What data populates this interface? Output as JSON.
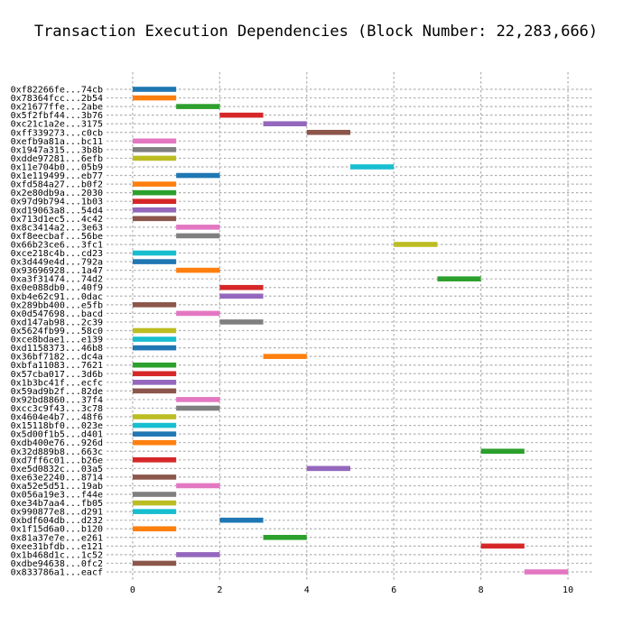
{
  "chart_data": {
    "type": "bar",
    "orientation": "horizontal-gantt",
    "title": "Transaction Execution Dependencies (Block Number: 22,283,666)",
    "xlabel": "",
    "ylabel": "",
    "xlim": [
      -0.6,
      10.6
    ],
    "xticks": [
      0,
      2,
      4,
      6,
      8,
      10
    ],
    "grid": true,
    "legend": "none",
    "palette": [
      "#1f77b4",
      "#ff7f0e",
      "#2ca02c",
      "#d62728",
      "#9467bd",
      "#8c564b",
      "#e377c2",
      "#7f7f7f",
      "#bcbd22",
      "#17becf"
    ],
    "tasks": [
      {
        "label": "0xf82266fe...74cb",
        "start": 0,
        "end": 1
      },
      {
        "label": "0x78364fcc...2b54",
        "start": 0,
        "end": 1
      },
      {
        "label": "0x21677ffe...2abe",
        "start": 1,
        "end": 2
      },
      {
        "label": "0x5f2fbf44...3b76",
        "start": 2,
        "end": 3
      },
      {
        "label": "0xc21c1a2e...3175",
        "start": 3,
        "end": 4
      },
      {
        "label": "0xff339273...c0cb",
        "start": 4,
        "end": 5
      },
      {
        "label": "0xefb9a81a...bc11",
        "start": 0,
        "end": 1
      },
      {
        "label": "0x1947a315...3b8b",
        "start": 0,
        "end": 1
      },
      {
        "label": "0xdde97281...6efb",
        "start": 0,
        "end": 1
      },
      {
        "label": "0x11e704b0...05b9",
        "start": 5,
        "end": 6
      },
      {
        "label": "0x1e119499...eb77",
        "start": 1,
        "end": 2
      },
      {
        "label": "0xfd584a27...b0f2",
        "start": 0,
        "end": 1
      },
      {
        "label": "0x2e80db9a...2030",
        "start": 0,
        "end": 1
      },
      {
        "label": "0x97d9b794...1b03",
        "start": 0,
        "end": 1
      },
      {
        "label": "0xd19063a8...54d4",
        "start": 0,
        "end": 1
      },
      {
        "label": "0x713d1ec5...4c42",
        "start": 0,
        "end": 1
      },
      {
        "label": "0x8c3414a2...3e63",
        "start": 1,
        "end": 2
      },
      {
        "label": "0xf8eecbaf...56be",
        "start": 1,
        "end": 2
      },
      {
        "label": "0x66b23ce6...3fc1",
        "start": 6,
        "end": 7
      },
      {
        "label": "0xce218c4b...cd23",
        "start": 0,
        "end": 1
      },
      {
        "label": "0x3d449e4d...792a",
        "start": 0,
        "end": 1
      },
      {
        "label": "0x93696928...1a47",
        "start": 1,
        "end": 2
      },
      {
        "label": "0xa3f31474...74d2",
        "start": 7,
        "end": 8
      },
      {
        "label": "0x0e088db0...40f9",
        "start": 2,
        "end": 3
      },
      {
        "label": "0xb4e62c91...0dac",
        "start": 2,
        "end": 3
      },
      {
        "label": "0x289bb400...e5fb",
        "start": 0,
        "end": 1
      },
      {
        "label": "0x0d547698...bacd",
        "start": 1,
        "end": 2
      },
      {
        "label": "0xd147ab98...2c39",
        "start": 2,
        "end": 3
      },
      {
        "label": "0x5624fb99...58c0",
        "start": 0,
        "end": 1
      },
      {
        "label": "0xce8bdae1...e139",
        "start": 0,
        "end": 1
      },
      {
        "label": "0xd1158373...46b8",
        "start": 0,
        "end": 1
      },
      {
        "label": "0x36bf7182...dc4a",
        "start": 3,
        "end": 4
      },
      {
        "label": "0xbfa11083...7621",
        "start": 0,
        "end": 1
      },
      {
        "label": "0x57cba017...3d6b",
        "start": 0,
        "end": 1
      },
      {
        "label": "0x1b3bc41f...ecfc",
        "start": 0,
        "end": 1
      },
      {
        "label": "0x59ad9b2f...82de",
        "start": 0,
        "end": 1
      },
      {
        "label": "0x92bd8860...37f4",
        "start": 1,
        "end": 2
      },
      {
        "label": "0xcc3c9f43...3c78",
        "start": 1,
        "end": 2
      },
      {
        "label": "0x4604e4b7...48f6",
        "start": 0,
        "end": 1
      },
      {
        "label": "0x15118bf0...023e",
        "start": 0,
        "end": 1
      },
      {
        "label": "0x5d00f1b5...d401",
        "start": 0,
        "end": 1
      },
      {
        "label": "0xdb400e76...926d",
        "start": 0,
        "end": 1
      },
      {
        "label": "0x32d889b8...663c",
        "start": 8,
        "end": 9
      },
      {
        "label": "0xd7ff6c01...b26e",
        "start": 0,
        "end": 1
      },
      {
        "label": "0xe5d0832c...03a5",
        "start": 4,
        "end": 5
      },
      {
        "label": "0xe63e2240...8714",
        "start": 0,
        "end": 1
      },
      {
        "label": "0xa52e5d51...19ab",
        "start": 1,
        "end": 2
      },
      {
        "label": "0x056a19e3...f44e",
        "start": 0,
        "end": 1
      },
      {
        "label": "0xe34b7aa4...fb05",
        "start": 0,
        "end": 1
      },
      {
        "label": "0x990877e8...d291",
        "start": 0,
        "end": 1
      },
      {
        "label": "0xbdf604db...d232",
        "start": 2,
        "end": 3
      },
      {
        "label": "0x1f15d6a0...b120",
        "start": 0,
        "end": 1
      },
      {
        "label": "0x81a37e7e...e261",
        "start": 3,
        "end": 4
      },
      {
        "label": "0xee31bfdb...e121",
        "start": 8,
        "end": 9
      },
      {
        "label": "0x1b468d1c...1c52",
        "start": 1,
        "end": 2
      },
      {
        "label": "0xdbe94638...0fc2",
        "start": 0,
        "end": 1
      },
      {
        "label": "0x833786a1...eacf",
        "start": 9,
        "end": 10
      }
    ]
  }
}
